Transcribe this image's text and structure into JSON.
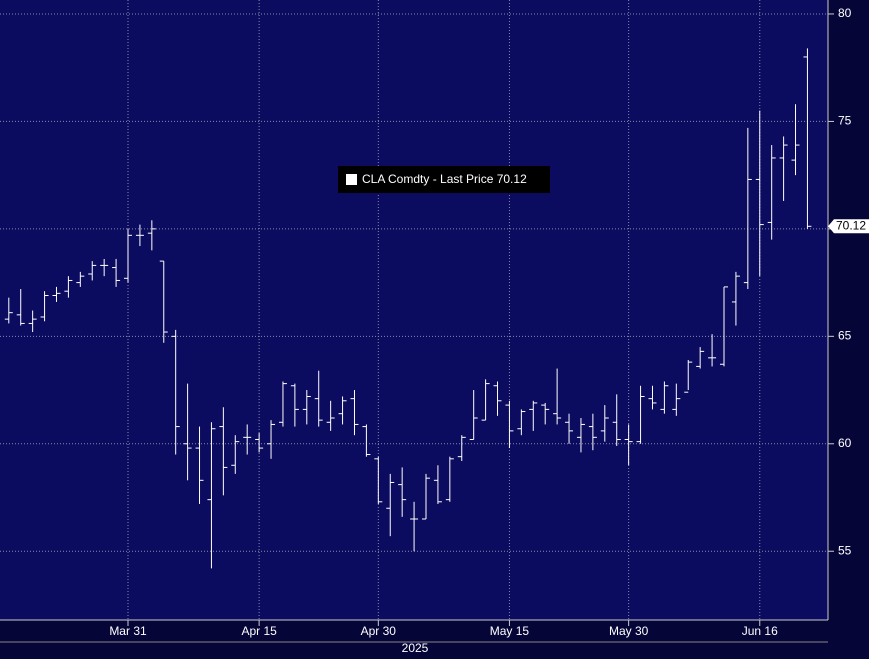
{
  "chart_data": {
    "type": "ohlc",
    "legend": "CLA Comdty - Last Price 70.12",
    "year_label": "2025",
    "color": "#ffffff",
    "grid": true,
    "ylim": [
      51.8,
      80.65
    ],
    "yticks": [
      55,
      60,
      65,
      70,
      75,
      80
    ],
    "categories": [
      null,
      null,
      null,
      null,
      null,
      null,
      null,
      null,
      null,
      null,
      "Mar 31",
      null,
      null,
      null,
      null,
      null,
      null,
      null,
      null,
      null,
      null,
      "Apr 15",
      null,
      null,
      null,
      null,
      null,
      null,
      null,
      null,
      null,
      "Apr 30",
      null,
      null,
      null,
      null,
      null,
      null,
      null,
      null,
      null,
      null,
      "May 15",
      null,
      null,
      null,
      null,
      null,
      null,
      null,
      null,
      null,
      "May 30",
      null,
      null,
      null,
      null,
      null,
      null,
      null,
      null,
      null,
      null,
      "Jun 16",
      null,
      null,
      null,
      null
    ],
    "series": [
      {
        "name": "CLA Comdty",
        "open": [
          65.8,
          66.0,
          65.6,
          65.9,
          66.9,
          67.1,
          67.5,
          67.9,
          68.3,
          68.2,
          67.7,
          69.7,
          69.8,
          68.5,
          65.0,
          60.0,
          59.8,
          57.4,
          60.8,
          59.0,
          60.3,
          60.2,
          60.0,
          61.0,
          62.7,
          61.6,
          62.1,
          61.0,
          61.4,
          62.1,
          60.8,
          59.3,
          57.0,
          58.1,
          56.5,
          56.5,
          58.3,
          57.4,
          59.4,
          60.2,
          61.1,
          62.7,
          61.8,
          60.7,
          61.6,
          61.8,
          61.4,
          61.0,
          60.3,
          60.8,
          60.6,
          61.0,
          60.2,
          60.1,
          62.1,
          61.6,
          61.6,
          62.4,
          63.6,
          64.0,
          63.7,
          66.6,
          67.5,
          72.3,
          70.3,
          73.3,
          73.2,
          78.0
        ],
        "high": [
          66.8,
          67.2,
          66.2,
          67.1,
          67.3,
          67.8,
          68.0,
          68.5,
          68.6,
          68.6,
          70.0,
          70.2,
          70.4,
          68.5,
          65.3,
          62.8,
          60.8,
          61.0,
          61.7,
          60.4,
          60.9,
          60.5,
          61.1,
          62.9,
          62.8,
          62.5,
          63.4,
          62.0,
          62.2,
          62.5,
          60.9,
          59.4,
          58.6,
          58.9,
          57.3,
          58.6,
          59.0,
          59.4,
          60.4,
          62.5,
          63.0,
          62.9,
          62.0,
          61.6,
          62.0,
          61.9,
          63.5,
          61.4,
          61.2,
          61.4,
          61.8,
          62.3,
          60.9,
          62.7,
          62.7,
          62.9,
          62.8,
          63.9,
          64.5,
          65.1,
          67.3,
          68.0,
          74.7,
          75.5,
          73.9,
          74.3,
          75.8,
          78.4
        ],
        "low": [
          65.6,
          65.5,
          65.2,
          65.7,
          66.6,
          66.8,
          67.3,
          67.6,
          67.8,
          67.3,
          67.5,
          69.2,
          69.0,
          64.7,
          59.5,
          58.3,
          57.2,
          54.2,
          57.6,
          58.6,
          59.5,
          59.6,
          59.3,
          60.8,
          60.8,
          60.9,
          60.8,
          60.6,
          60.9,
          60.4,
          59.4,
          57.2,
          55.7,
          56.6,
          55.0,
          56.5,
          57.2,
          57.3,
          59.2,
          60.2,
          61.1,
          61.3,
          59.8,
          60.4,
          60.6,
          60.9,
          60.9,
          60.0,
          59.6,
          59.7,
          60.1,
          59.9,
          59.0,
          60.0,
          61.6,
          61.4,
          61.3,
          62.5,
          63.5,
          63.6,
          63.6,
          65.5,
          67.2,
          67.8,
          69.5,
          71.3,
          72.5,
          70.0
        ],
        "close": [
          66.1,
          65.6,
          65.8,
          66.9,
          67.0,
          67.6,
          67.8,
          68.3,
          68.3,
          67.6,
          69.7,
          69.7,
          70.0,
          65.2,
          60.8,
          59.8,
          58.3,
          60.7,
          58.9,
          60.1,
          60.3,
          59.8,
          60.9,
          62.8,
          61.6,
          62.2,
          61.1,
          61.2,
          62.0,
          60.9,
          59.5,
          57.3,
          58.2,
          57.4,
          56.5,
          58.4,
          57.3,
          59.3,
          60.3,
          61.2,
          62.8,
          62.0,
          60.6,
          61.5,
          61.9,
          61.6,
          61.2,
          60.6,
          60.9,
          60.3,
          61.2,
          60.2,
          60.1,
          62.2,
          61.9,
          62.7,
          62.1,
          63.8,
          64.3,
          64.0,
          67.3,
          67.8,
          72.3,
          70.2,
          73.3,
          73.9,
          73.9,
          70.12
        ]
      }
    ]
  }
}
